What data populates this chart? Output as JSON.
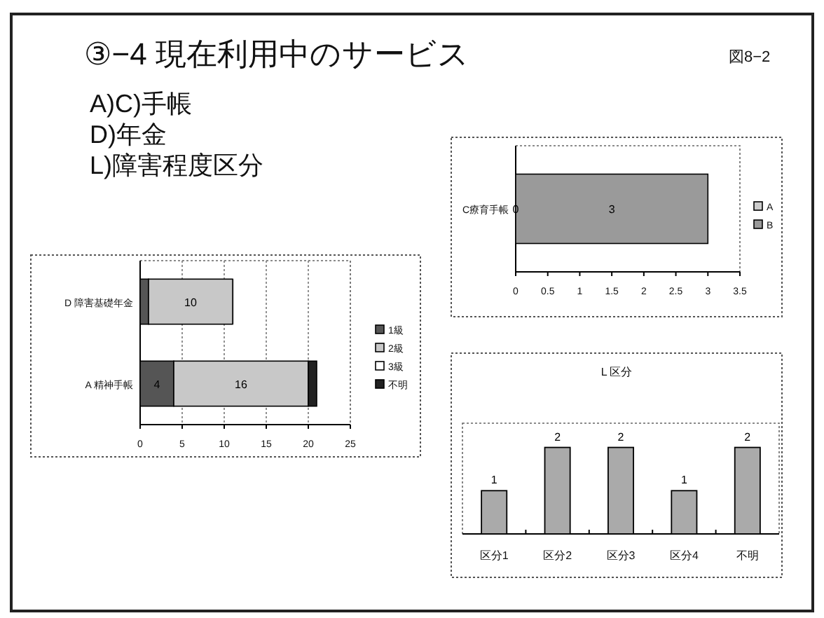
{
  "chart_data": [
    {
      "type": "other",
      "title": "③−4  現在利用中のサービス",
      "annotations": [
        "図8−2",
        "A)C)手帳",
        "D)年金",
        "L)障害程度区分"
      ]
    },
    {
      "type": "bar",
      "orientation": "horizontal",
      "stacked": true,
      "categories": [
        "D  障害基礎年金",
        "A  精神手帳"
      ],
      "series": [
        {
          "name": "1級",
          "color": "#555555",
          "values": [
            1,
            4
          ],
          "value_labels": [
            null,
            "4"
          ]
        },
        {
          "name": "2級",
          "color": "#c8c8c8",
          "values": [
            10,
            16
          ],
          "value_labels": [
            "10",
            "16"
          ]
        },
        {
          "name": "3級",
          "color": "#ffffff",
          "values": [
            null,
            null
          ]
        },
        {
          "name": "不明",
          "color": "#222222",
          "values": [
            0,
            1
          ]
        }
      ],
      "xlim": [
        0,
        25
      ],
      "xticks": [
        0,
        5,
        10,
        15,
        20,
        25
      ],
      "grid": "x",
      "legend": "right"
    },
    {
      "type": "bar",
      "orientation": "horizontal",
      "stacked": true,
      "categories": [
        "C療育手帳"
      ],
      "series": [
        {
          "name": "A",
          "color": "#cccccc",
          "values": [
            0
          ],
          "value_labels": [
            "0"
          ]
        },
        {
          "name": "B",
          "color": "#9a9a9a",
          "values": [
            3
          ],
          "value_labels": [
            "3"
          ]
        }
      ],
      "xlim": [
        0,
        3.5
      ],
      "xticks": [
        0,
        0.5,
        1,
        1.5,
        2,
        2.5,
        3,
        3.5
      ],
      "legend": "right"
    },
    {
      "type": "bar",
      "title": "L 区分",
      "categories": [
        "区分1",
        "区分2",
        "区分3",
        "区分4",
        "不明"
      ],
      "values": [
        1,
        2,
        2,
        1,
        2
      ],
      "color": "#aaaaaa",
      "data_labels": true
    }
  ]
}
